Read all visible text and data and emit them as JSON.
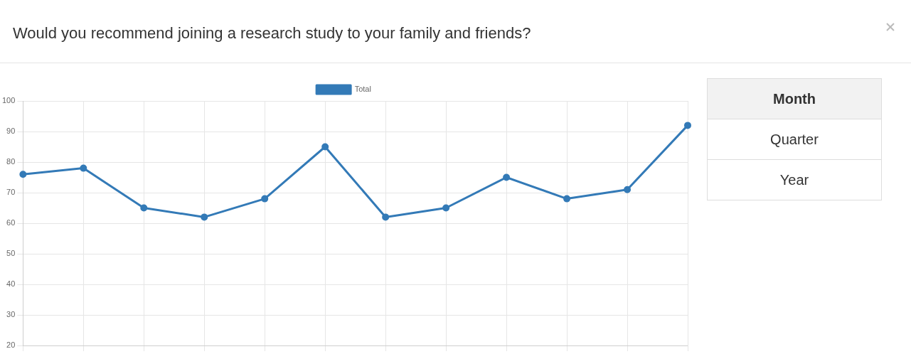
{
  "chart_data": {
    "type": "line",
    "title": "Would you recommend joining a research study to your family and friends?",
    "categories": [
      null,
      null,
      null,
      null,
      null,
      null,
      null,
      null,
      null,
      null,
      null,
      null
    ],
    "series": [
      {
        "name": "Total",
        "color": "#337ab7",
        "values": [
          76,
          78,
          65,
          62,
          68,
          85,
          62,
          65,
          75,
          68,
          71,
          92
        ]
      }
    ],
    "ylim": [
      20,
      100
    ],
    "yticks": [
      20,
      30,
      40,
      50,
      60,
      70,
      80,
      90,
      100
    ],
    "grid": true,
    "legend": "top",
    "marker": "circle",
    "line_style": "solid",
    "tick_labels": "y",
    "annotations": [
      "Month",
      "Quarter",
      "Year"
    ]
  }
}
